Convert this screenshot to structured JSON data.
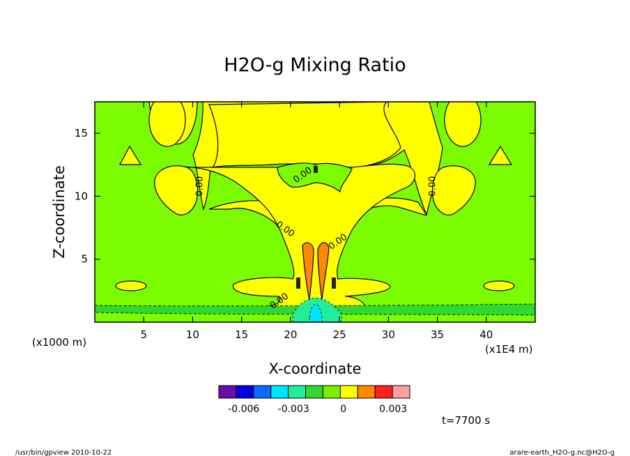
{
  "chart_data": {
    "type": "heatmap",
    "title": "H2O-g Mixing Ratio",
    "xlabel": "X-coordinate",
    "ylabel": "Z-coordinate",
    "x_unit": "(x1E4 m)",
    "y_unit": "(x1000 m)",
    "xlim": [
      0,
      45
    ],
    "ylim": [
      0,
      17.5
    ],
    "x_ticks": [
      5,
      10,
      15,
      20,
      25,
      30,
      35,
      40
    ],
    "y_ticks": [
      5,
      10,
      15
    ],
    "contour_labels": [
      {
        "x": 11,
        "y": 10.8,
        "text": "0.00"
      },
      {
        "x": 34.8,
        "y": 10.8,
        "text": "0.00"
      },
      {
        "x": 21.4,
        "y": 11.5,
        "text": "0.00"
      },
      {
        "x": 19.3,
        "y": 7.2,
        "text": "0.00"
      },
      {
        "x": 25,
        "y": 6.2,
        "text": "0.00"
      },
      {
        "x": 19,
        "y": 1.5,
        "text": "0.00"
      }
    ],
    "colorbar": {
      "colors": [
        "#6a0dad",
        "#0000e0",
        "#0a6cff",
        "#00e5ff",
        "#22ee99",
        "#30d830",
        "#7cf000",
        "#ffff00",
        "#ff8800",
        "#ff2020",
        "#ffa0a0"
      ],
      "tick_labels": [
        "-0.006",
        "-0.003",
        "0",
        "0.003"
      ],
      "tick_values": [
        -0.006,
        -0.003,
        0,
        0.003
      ],
      "range": [
        -0.0075,
        0.004
      ]
    },
    "background_color": "#7cfc00",
    "grid": false,
    "legend": "bottom-colorbar"
  },
  "annotations": {
    "time": "t=7700 s",
    "footer_left": "/usr/bin/gpview  2010-10-22",
    "footer_right": "arare-earth_H2O-g.nc@H2O-g"
  }
}
